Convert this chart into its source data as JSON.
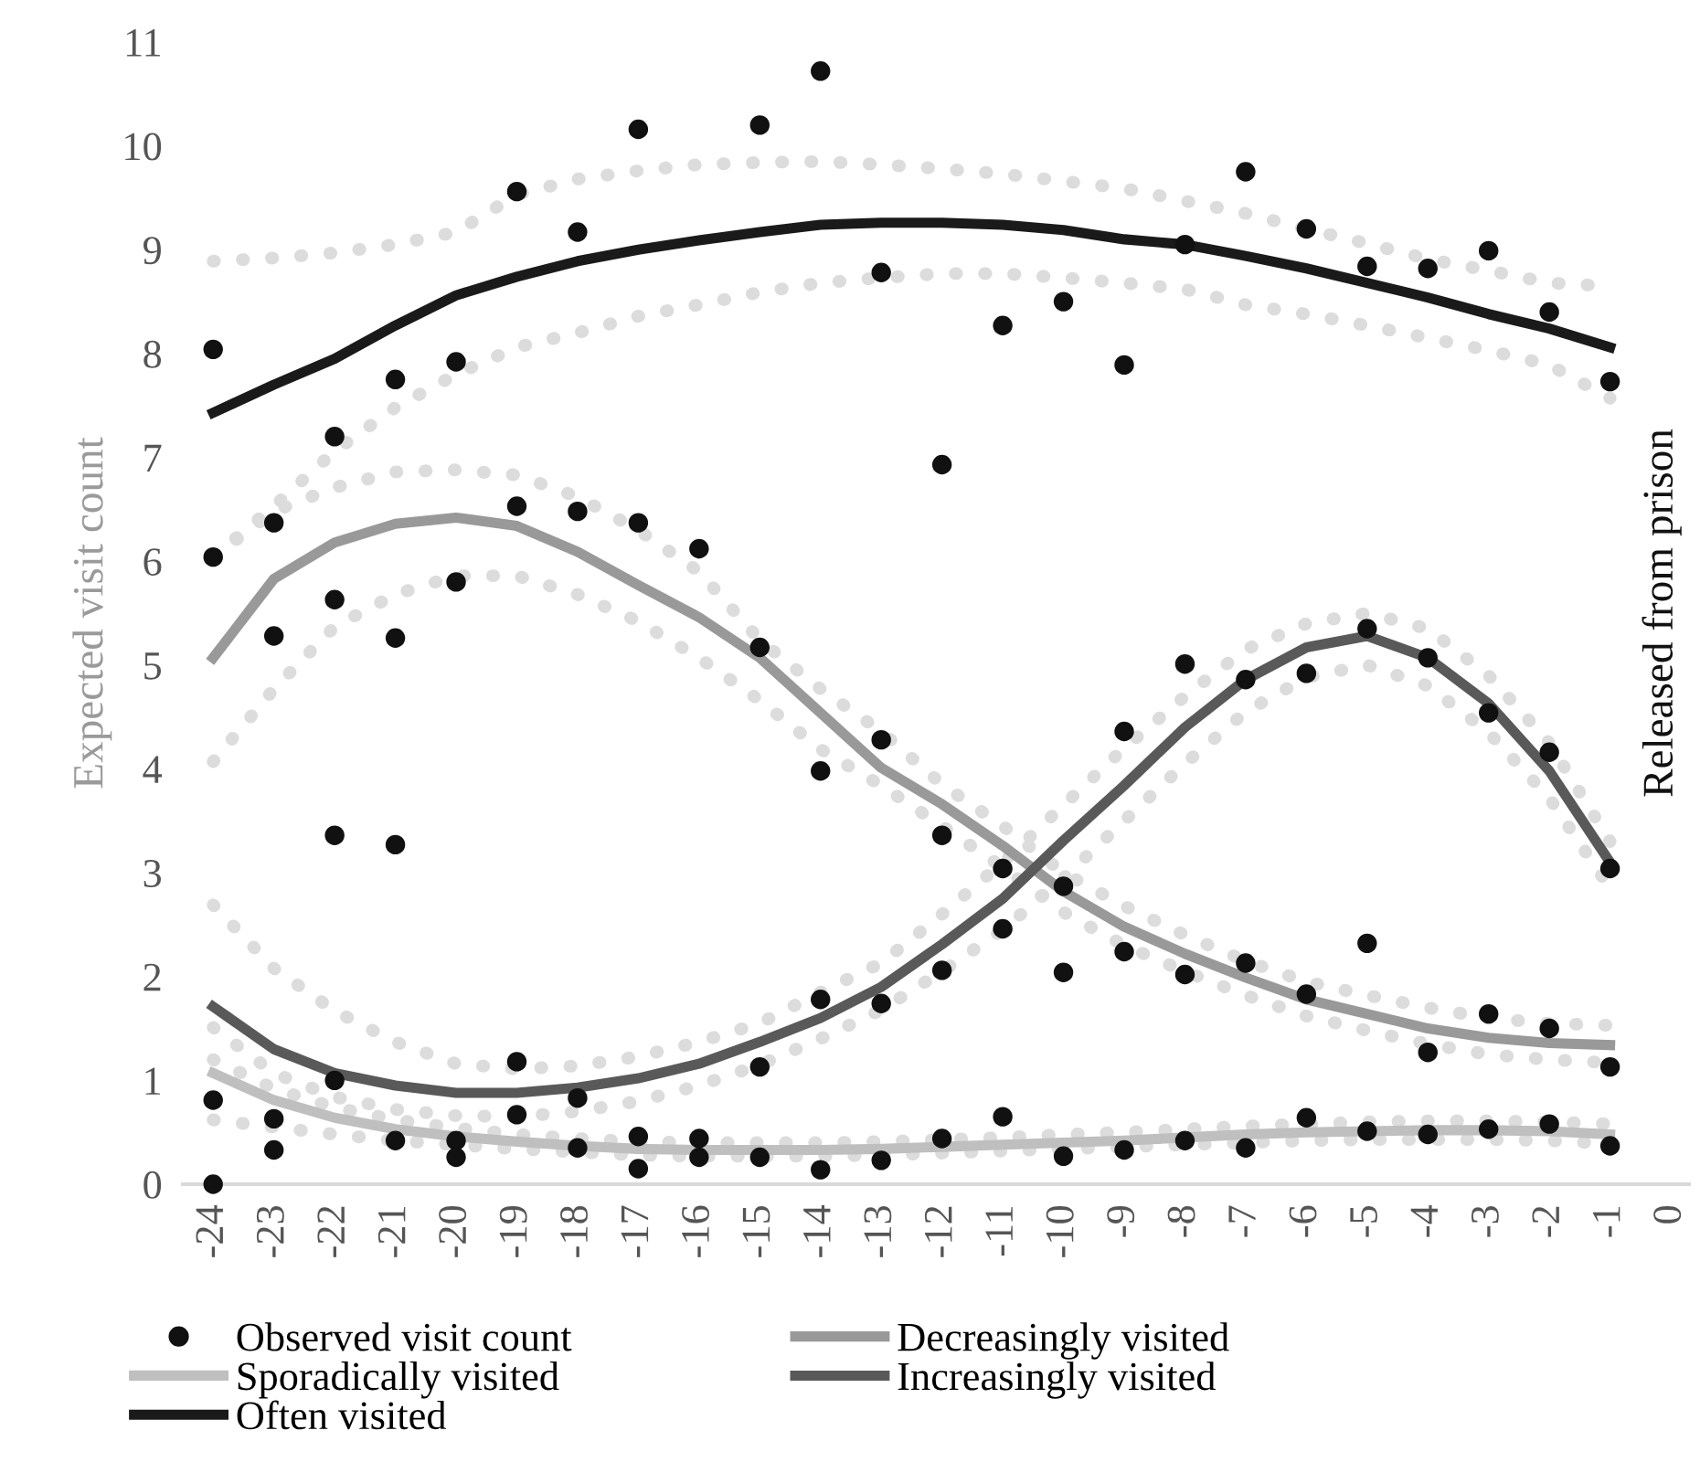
{
  "chart_data": {
    "type": "line",
    "ylabel": "Expected visit count",
    "x": [
      -24,
      -23,
      -22,
      -21,
      -20,
      -19,
      -18,
      -17,
      -16,
      -15,
      -14,
      -13,
      -12,
      -11,
      -10,
      -9,
      -8,
      -7,
      -6,
      -5,
      -4,
      -3,
      -2,
      -1
    ],
    "xlim": [
      -24.5,
      0.3
    ],
    "xticks": [
      -24,
      -23,
      -22,
      -21,
      -20,
      -19,
      -18,
      -17,
      -16,
      -15,
      -14,
      -13,
      -12,
      -11,
      -10,
      -9,
      -8,
      -7,
      -6,
      -5,
      -4,
      -3,
      -2,
      -1,
      0
    ],
    "ylim": [
      0,
      11
    ],
    "yticks": [
      0,
      1,
      2,
      3,
      4,
      5,
      6,
      7,
      8,
      9,
      10,
      11
    ],
    "grid": false,
    "legend": "bottom",
    "line_style": "solid",
    "series": [
      {
        "name": "Observed visit count",
        "type": "scatter",
        "color": "#111111",
        "x": [
          -24,
          -24,
          -24,
          -24,
          -23,
          -23,
          -23,
          -23,
          -22,
          -22,
          -22,
          -22,
          -21,
          -21,
          -21,
          -21,
          -20,
          -20,
          -20,
          -20,
          -19,
          -19,
          -19,
          -19,
          -18,
          -18,
          -18,
          -18,
          -17,
          -17,
          -17,
          -17,
          -16,
          -16,
          -16,
          -15,
          -15,
          -15,
          -15,
          -14,
          -14,
          -14,
          -14,
          -13,
          -13,
          -13,
          -13,
          -12,
          -12,
          -12,
          -12,
          -11,
          -11,
          -11,
          -11,
          -10,
          -10,
          -10,
          -10,
          -9,
          -9,
          -9,
          -9,
          -8,
          -8,
          -8,
          -8,
          -7,
          -7,
          -7,
          -7,
          -6,
          -6,
          -6,
          -6,
          -5,
          -5,
          -5,
          -5,
          -4,
          -4,
          -4,
          -4,
          -3,
          -3,
          -3,
          -3,
          -2,
          -2,
          -2,
          -2,
          -1,
          -1,
          -1,
          -1
        ],
        "values": [
          8.04,
          6.04,
          0.81,
          0,
          6.37,
          5.28,
          0.63,
          0.33,
          7.2,
          5.63,
          3.36,
          1.0,
          7.75,
          5.26,
          3.27,
          0.42,
          7.92,
          5.8,
          0.42,
          0.26,
          9.56,
          6.53,
          1.18,
          0.67,
          9.17,
          6.48,
          0.83,
          0.35,
          10.16,
          6.37,
          0.46,
          0.15,
          6.12,
          0.44,
          0.26,
          10.2,
          5.17,
          1.13,
          0.26,
          10.72,
          3.98,
          1.78,
          0.14,
          8.78,
          4.28,
          1.74,
          0.23,
          6.93,
          3.36,
          2.06,
          0.44,
          8.27,
          3.04,
          2.46,
          0.65,
          8.5,
          2.87,
          2.04,
          0.27,
          7.89,
          4.36,
          2.24,
          0.33,
          9.05,
          5.01,
          2.02,
          0.42,
          9.75,
          4.86,
          2.13,
          0.35,
          9.2,
          4.92,
          1.83,
          0.64,
          8.84,
          5.35,
          2.32,
          0.51,
          8.82,
          5.07,
          1.27,
          0.48,
          8.99,
          4.54,
          1.64,
          0.53,
          8.4,
          4.16,
          1.5,
          0.58,
          7.73,
          3.04,
          1.13,
          0.37
        ]
      },
      {
        "line_style": "dotted",
        "color": "#dcdcdc",
        "values": [
          6.04,
          6.48,
          6.71,
          6.86,
          6.88,
          6.83,
          6.62,
          6.3,
          5.9,
          5.24,
          4.77,
          4.36,
          3.85,
          3.45,
          3.0,
          2.68,
          2.4,
          2.15,
          1.95,
          1.82,
          1.7,
          1.6,
          1.55,
          1.53
        ]
      },
      {
        "line_style": "dotted",
        "color": "#dcdcdc",
        "values": [
          4.07,
          4.77,
          5.37,
          5.68,
          5.86,
          5.86,
          5.68,
          5.42,
          5.07,
          4.66,
          4.19,
          3.84,
          3.45,
          3.05,
          2.62,
          2.3,
          2.05,
          1.82,
          1.62,
          1.48,
          1.35,
          1.25,
          1.2,
          1.17
        ]
      },
      {
        "line_style": "dotted",
        "color": "#dcdcdc",
        "values": [
          1.2,
          0.92,
          0.74,
          0.62,
          0.54,
          0.48,
          0.44,
          0.41,
          0.4,
          0.4,
          0.4,
          0.41,
          0.43,
          0.45,
          0.48,
          0.5,
          0.53,
          0.56,
          0.58,
          0.6,
          0.61,
          0.61,
          0.6,
          0.58
        ]
      },
      {
        "line_style": "dotted",
        "color": "#dcdcdc",
        "values": [
          0.62,
          0.55,
          0.48,
          0.42,
          0.38,
          0.34,
          0.31,
          0.28,
          0.27,
          0.27,
          0.27,
          0.28,
          0.3,
          0.32,
          0.34,
          0.36,
          0.38,
          0.4,
          0.42,
          0.43,
          0.43,
          0.43,
          0.42,
          0.39
        ]
      },
      {
        "line_style": "dotted",
        "color": "#dcdcdc",
        "values": [
          2.69,
          2.08,
          1.67,
          1.37,
          1.16,
          1.11,
          1.14,
          1.23,
          1.37,
          1.55,
          1.85,
          2.13,
          2.6,
          3.1,
          3.65,
          4.2,
          4.7,
          5.15,
          5.4,
          5.5,
          5.35,
          4.9,
          4.25,
          3.3
        ]
      },
      {
        "line_style": "dotted",
        "color": "#dcdcdc",
        "values": [
          1.51,
          1.07,
          0.84,
          0.72,
          0.66,
          0.65,
          0.7,
          0.8,
          0.95,
          1.15,
          1.4,
          1.68,
          2.05,
          2.45,
          2.95,
          3.5,
          4.05,
          4.55,
          4.88,
          5.0,
          4.8,
          4.35,
          3.72,
          2.85
        ]
      },
      {
        "line_style": "dotted",
        "color": "#dcdcdc",
        "values": [
          8.89,
          8.92,
          8.97,
          9.05,
          9.17,
          9.53,
          9.68,
          9.76,
          9.82,
          9.84,
          9.85,
          9.82,
          9.78,
          9.73,
          9.66,
          9.59,
          9.47,
          9.35,
          9.2,
          9.06,
          8.91,
          8.8,
          8.68,
          8.65
        ]
      },
      {
        "line_style": "dotted",
        "color": "#dcdcdc",
        "values": [
          6.04,
          6.53,
          7.06,
          7.48,
          7.8,
          8.06,
          8.2,
          8.36,
          8.47,
          8.59,
          8.68,
          8.73,
          8.77,
          8.77,
          8.73,
          8.68,
          8.62,
          8.47,
          8.38,
          8.27,
          8.15,
          8.03,
          7.89,
          7.57
        ]
      },
      {
        "name": "Decreasingly visited",
        "color": "#999999",
        "values": [
          5.07,
          5.83,
          6.18,
          6.36,
          6.42,
          6.34,
          6.09,
          5.77,
          5.46,
          5.07,
          4.54,
          4.01,
          3.66,
          3.26,
          2.82,
          2.48,
          2.22,
          1.99,
          1.78,
          1.64,
          1.5,
          1.41,
          1.36,
          1.34
        ]
      },
      {
        "name": "Sporadically visited",
        "color": "#bfbfbf",
        "values": [
          1.07,
          0.81,
          0.64,
          0.53,
          0.46,
          0.41,
          0.37,
          0.34,
          0.33,
          0.33,
          0.33,
          0.34,
          0.36,
          0.38,
          0.4,
          0.42,
          0.45,
          0.48,
          0.5,
          0.51,
          0.52,
          0.52,
          0.51,
          0.48
        ]
      },
      {
        "name": "Increasingly visited",
        "color": "#595959",
        "values": [
          1.71,
          1.3,
          1.07,
          0.95,
          0.88,
          0.88,
          0.93,
          1.02,
          1.16,
          1.37,
          1.6,
          1.9,
          2.31,
          2.75,
          3.31,
          3.84,
          4.4,
          4.86,
          5.17,
          5.28,
          5.07,
          4.63,
          3.98,
          3.1
        ]
      },
      {
        "name": "Often visited",
        "color": "#1a1a1a",
        "values": [
          7.43,
          7.7,
          7.95,
          8.27,
          8.56,
          8.74,
          8.89,
          9.0,
          9.09,
          9.17,
          9.24,
          9.26,
          9.26,
          9.24,
          9.19,
          9.1,
          9.05,
          8.94,
          8.82,
          8.68,
          8.54,
          8.38,
          8.24,
          8.06
        ]
      }
    ],
    "annotations": [
      "Released from prison"
    ]
  }
}
